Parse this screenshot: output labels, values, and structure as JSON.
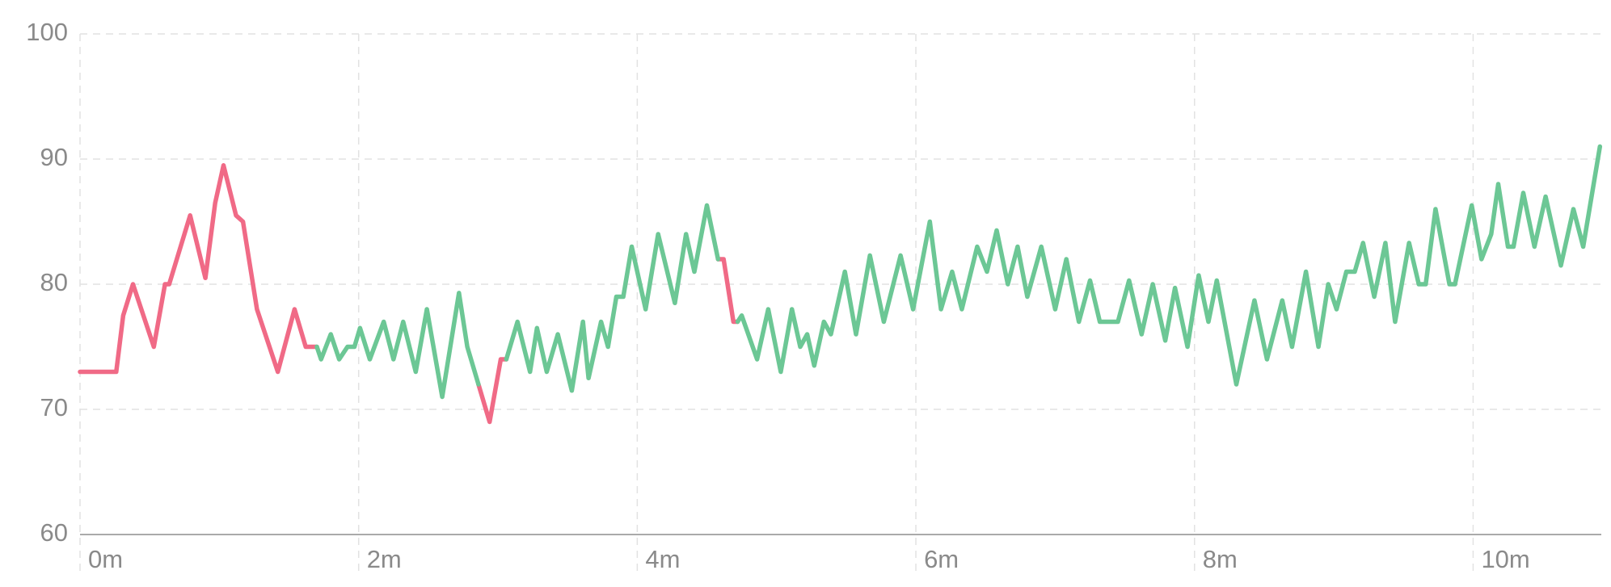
{
  "chart_data": {
    "type": "line",
    "x": [
      0,
      0.26,
      0.31,
      0.38,
      0.53,
      0.61,
      0.64,
      0.79,
      0.9,
      0.97,
      1.03,
      1.12,
      1.17,
      1.27,
      1.42,
      1.54,
      1.62,
      1.7,
      1.73,
      1.8,
      1.86,
      1.92,
      1.97,
      2.01,
      2.08,
      2.18,
      2.25,
      2.32,
      2.41,
      2.49,
      2.6,
      2.72,
      2.78,
      2.86,
      2.94,
      3.02,
      3.06,
      3.14,
      3.23,
      3.28,
      3.35,
      3.43,
      3.53,
      3.61,
      3.65,
      3.74,
      3.79,
      3.85,
      3.9,
      3.96,
      4.06,
      4.15,
      4.27,
      4.35,
      4.41,
      4.5,
      4.58,
      4.62,
      4.69,
      4.72,
      4.75,
      4.86,
      4.94,
      5.03,
      5.11,
      5.17,
      5.22,
      5.27,
      5.34,
      5.39,
      5.49,
      5.57,
      5.67,
      5.77,
      5.89,
      5.98,
      6.1,
      6.18,
      6.26,
      6.33,
      6.44,
      6.51,
      6.58,
      6.66,
      6.73,
      6.8,
      6.9,
      7.0,
      7.08,
      7.17,
      7.25,
      7.32,
      7.45,
      7.53,
      7.62,
      7.7,
      7.79,
      7.86,
      7.95,
      8.03,
      8.1,
      8.16,
      8.3,
      8.43,
      8.52,
      8.63,
      8.7,
      8.8,
      8.89,
      8.96,
      9.02,
      9.09,
      9.15,
      9.21,
      9.29,
      9.37,
      9.44,
      9.54,
      9.61,
      9.66,
      9.73,
      9.83,
      9.87,
      9.99,
      10.06,
      10.13,
      10.18,
      10.25,
      10.29,
      10.36,
      10.44,
      10.52,
      10.63,
      10.72,
      10.79,
      10.91
    ],
    "series": [
      {
        "color": "#f06a86",
        "values": [
          73,
          73,
          77.5,
          80,
          75,
          80,
          80,
          85.5,
          80.5,
          86.5,
          89.5,
          85.5,
          85,
          78,
          73,
          78,
          75,
          75,
          null,
          null,
          null,
          null,
          null,
          null,
          null,
          null,
          null,
          null,
          null,
          null,
          null,
          null,
          null,
          72,
          69,
          74,
          74,
          null,
          null,
          null,
          null,
          null,
          null,
          null,
          null,
          null,
          null,
          null,
          null,
          null,
          null,
          null,
          null,
          null,
          null,
          null,
          82,
          82,
          77,
          77,
          null,
          null,
          null,
          null,
          null,
          null,
          null,
          null,
          null,
          null,
          null,
          null,
          null,
          null,
          null,
          null,
          null,
          null,
          null,
          null,
          null,
          null,
          null,
          null,
          null,
          null,
          null,
          null,
          null,
          null,
          null,
          null,
          null,
          null,
          null,
          null,
          null,
          null,
          null,
          null,
          null,
          null,
          null,
          null,
          null,
          null,
          null,
          null,
          null,
          null,
          null,
          null,
          null,
          null,
          null,
          null,
          null,
          null,
          null,
          null,
          null,
          null,
          null,
          null,
          null,
          null,
          null,
          null,
          null,
          null,
          null,
          null,
          null,
          null,
          null,
          null
        ]
      },
      {
        "color": "#6cc795",
        "values": [
          null,
          null,
          null,
          null,
          null,
          null,
          null,
          null,
          null,
          null,
          null,
          null,
          null,
          null,
          null,
          null,
          null,
          75,
          74,
          76,
          74,
          75,
          75,
          76.5,
          74,
          77,
          74,
          77,
          73,
          78,
          71,
          79.3,
          75,
          72,
          null,
          null,
          74,
          77,
          73,
          76.5,
          73,
          76,
          71.5,
          77,
          72.5,
          77,
          75,
          79,
          79,
          83,
          78,
          84,
          78.5,
          84,
          81,
          86.3,
          82,
          null,
          null,
          77,
          77.5,
          74,
          78,
          73,
          78,
          75,
          76,
          73.5,
          77,
          76,
          81,
          76,
          82.3,
          77,
          82.3,
          78,
          85,
          78,
          81,
          78,
          83,
          81,
          84.3,
          80,
          83,
          79,
          83,
          78,
          82,
          77,
          80.3,
          77,
          77,
          80.3,
          76,
          80,
          75.5,
          79.7,
          75,
          80.7,
          77,
          80.3,
          72,
          78.7,
          74,
          78.7,
          75,
          81,
          75,
          80,
          78,
          81,
          81,
          83.3,
          79,
          83.3,
          77,
          83.3,
          80,
          80,
          86,
          80,
          80,
          86.3,
          82,
          84,
          88,
          83,
          83,
          87.3,
          83,
          87,
          81.5,
          86,
          83,
          91
        ]
      }
    ],
    "xlim": [
      0,
      10.92
    ],
    "ylim": [
      60,
      100
    ],
    "xticks": [
      {
        "value": 0,
        "label": "0m"
      },
      {
        "value": 2,
        "label": "2m"
      },
      {
        "value": 4,
        "label": "4m"
      },
      {
        "value": 6,
        "label": "6m"
      },
      {
        "value": 8,
        "label": "8m"
      },
      {
        "value": 10,
        "label": "10m"
      }
    ],
    "yticks": [
      60,
      70,
      80,
      90,
      100
    ],
    "grid": true
  }
}
